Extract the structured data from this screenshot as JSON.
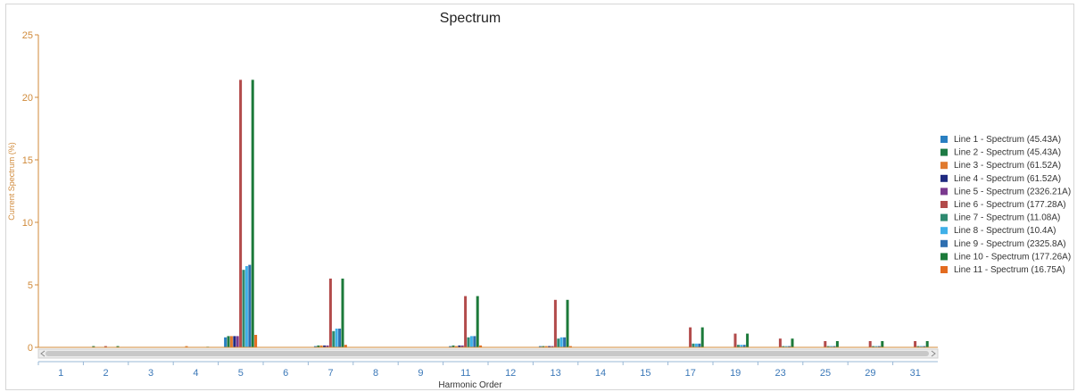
{
  "chart_data": {
    "type": "bar",
    "title": "Spectrum",
    "xlabel": "Harmonic Order",
    "ylabel": "Current Spectrum (%)",
    "ylim": [
      0,
      25
    ],
    "yticks": [
      "0",
      "5",
      "10",
      "15",
      "20",
      "25"
    ],
    "categories": [
      "1",
      "2",
      "3",
      "4",
      "5",
      "6",
      "7",
      "8",
      "9",
      "11",
      "12",
      "13",
      "14",
      "15",
      "17",
      "19",
      "23",
      "25",
      "29",
      "31"
    ],
    "legend_position": "right",
    "series": [
      {
        "name": "Line 1 - Spectrum (45.43A)",
        "color": "#2a7fc1",
        "values": [
          0,
          0,
          0,
          0,
          0.8,
          0,
          0.1,
          0,
          0,
          0.1,
          0,
          0.1,
          0,
          0,
          0,
          0,
          0,
          0,
          0,
          0
        ]
      },
      {
        "name": "Line 2 - Spectrum (45.43A)",
        "color": "#1e7b45",
        "values": [
          0,
          0.1,
          0,
          0,
          0.9,
          0,
          0.15,
          0,
          0,
          0.15,
          0,
          0.1,
          0,
          0,
          0,
          0,
          0,
          0,
          0,
          0
        ]
      },
      {
        "name": "Line 3 - Spectrum (61.52A)",
        "color": "#e07a2e",
        "values": [
          0,
          0,
          0,
          0.1,
          0.9,
          0,
          0.15,
          0,
          0,
          0.1,
          0,
          0.1,
          0,
          0,
          0,
          0,
          0,
          0,
          0,
          0
        ]
      },
      {
        "name": "Line 4 - Spectrum (61.52A)",
        "color": "#1f2a80",
        "values": [
          0,
          0,
          0,
          0,
          0.9,
          0,
          0.15,
          0,
          0,
          0.15,
          0,
          0.1,
          0,
          0,
          0,
          0,
          0,
          0,
          0,
          0
        ]
      },
      {
        "name": "Line 5 - Spectrum (2326.21A)",
        "color": "#7b3a8f",
        "values": [
          0,
          0,
          0,
          0,
          0.9,
          0,
          0.15,
          0,
          0,
          0.15,
          0,
          0.1,
          0,
          0,
          0,
          0,
          0,
          0,
          0,
          0
        ]
      },
      {
        "name": "Line 6 - Spectrum (177.28A)",
        "color": "#b24b4b",
        "values": [
          0,
          0.1,
          0,
          0,
          21.4,
          0,
          5.5,
          0,
          0,
          4.1,
          0,
          3.8,
          0,
          0,
          1.6,
          1.1,
          0.7,
          0.5,
          0.5,
          0.5
        ]
      },
      {
        "name": "Line 7 - Spectrum (11.08A)",
        "color": "#2e8a70",
        "values": [
          0,
          0,
          0,
          0,
          6.2,
          0,
          1.3,
          0,
          0,
          0.8,
          0,
          0.7,
          0,
          0,
          0.3,
          0.2,
          0.1,
          0.1,
          0.1,
          0.1
        ]
      },
      {
        "name": "Line 8 - Spectrum (10.4A)",
        "color": "#3fb0e8",
        "values": [
          0,
          0,
          0,
          0,
          6.5,
          0,
          1.5,
          0,
          0,
          0.9,
          0,
          0.8,
          0,
          0,
          0.3,
          0.2,
          0.1,
          0.1,
          0.1,
          0.1
        ]
      },
      {
        "name": "Line 9 - Spectrum (2325.8A)",
        "color": "#2e6fb0",
        "values": [
          0,
          0,
          0,
          0,
          6.6,
          0,
          1.5,
          0,
          0,
          0.9,
          0,
          0.8,
          0,
          0,
          0.3,
          0.2,
          0.1,
          0.1,
          0.1,
          0.1
        ]
      },
      {
        "name": "Line 10 - Spectrum (177.26A)",
        "color": "#1c7a3a",
        "values": [
          0,
          0.1,
          0,
          0.05,
          21.4,
          0,
          5.5,
          0,
          0,
          4.1,
          0,
          3.8,
          0,
          0,
          1.6,
          1.1,
          0.7,
          0.5,
          0.5,
          0.5
        ]
      },
      {
        "name": "Line 11 - Spectrum (16.75A)",
        "color": "#e36b1f",
        "values": [
          0,
          0,
          0,
          0,
          1.0,
          0,
          0.2,
          0,
          0,
          0.15,
          0,
          0.1,
          0,
          0,
          0,
          0,
          0,
          0,
          0,
          0
        ]
      }
    ]
  },
  "colors": {
    "axis": "#d08a3a",
    "x_tick_text": "#3b78b8",
    "scrollbar_track": "#ececec",
    "scrollbar_thumb": "#c8c8c8"
  },
  "scrollbar": {
    "left_arrow_icon": "chevron-left-icon",
    "right_arrow_icon": "chevron-right-icon"
  }
}
